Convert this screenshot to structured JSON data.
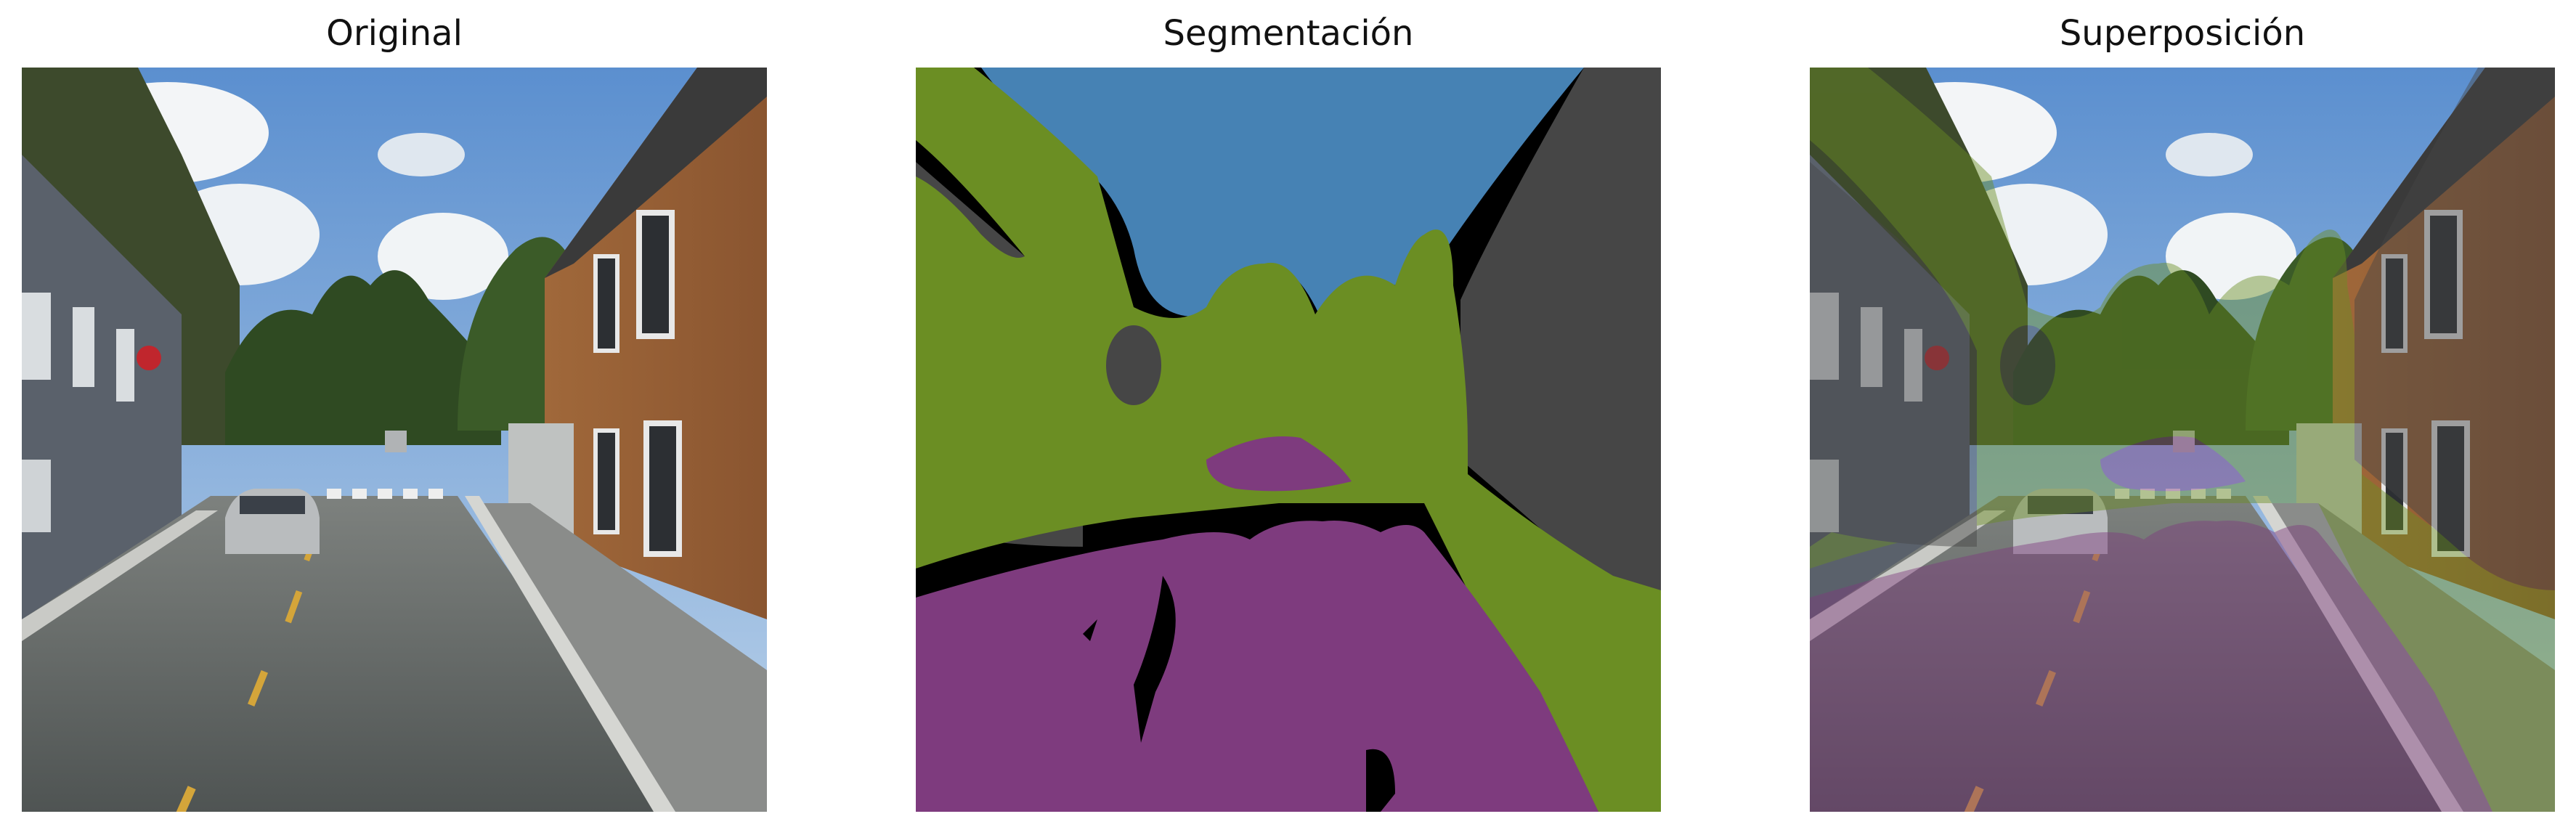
{
  "panels": [
    {
      "title": "Original"
    },
    {
      "title": "Segmentación"
    },
    {
      "title": "Superposición"
    }
  ],
  "colors": {
    "sky": "#4682b4",
    "building": "#464646",
    "vegetation": "#6b8e23",
    "road": "#7e3b7e",
    "void": "#000000"
  }
}
